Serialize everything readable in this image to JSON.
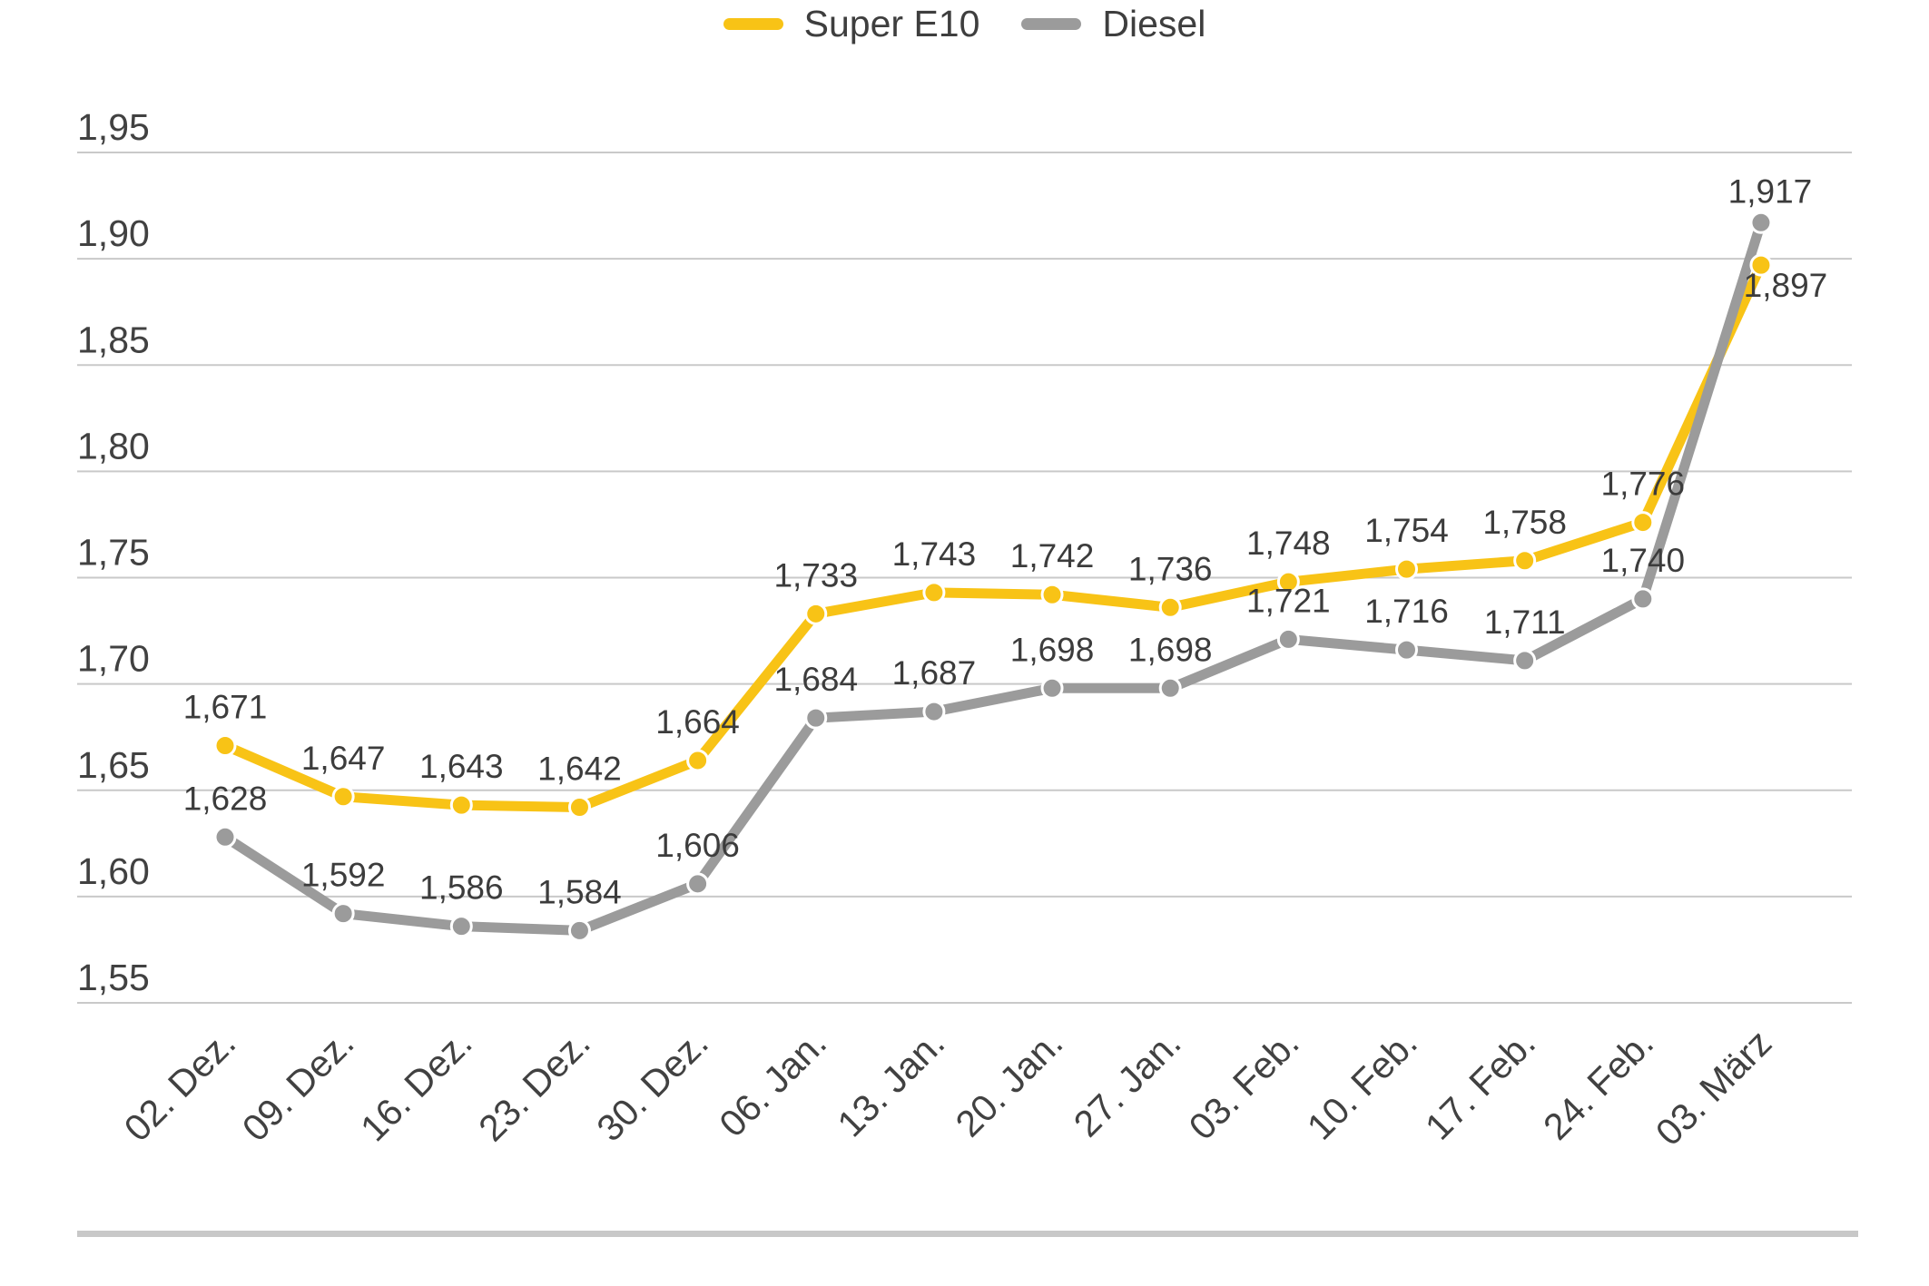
{
  "legend": {
    "items": [
      {
        "label": "Super E10",
        "color": "#F8C316"
      },
      {
        "label": "Diesel",
        "color": "#9B9B9B"
      }
    ]
  },
  "chart_data": {
    "type": "line",
    "title": "",
    "xlabel": "",
    "ylabel": "",
    "categories": [
      "02. Dez.",
      "09. Dez.",
      "16. Dez.",
      "23. Dez.",
      "30. Dez.",
      "06. Jan.",
      "13. Jan.",
      "20. Jan.",
      "27. Jan.",
      "03. Feb.",
      "10. Feb.",
      "17. Feb.",
      "24. Feb.",
      "03. März"
    ],
    "series": [
      {
        "name": "Super E10",
        "color": "#F8C316",
        "values": [
          1.671,
          1.647,
          1.643,
          1.642,
          1.664,
          1.733,
          1.743,
          1.742,
          1.736,
          1.748,
          1.754,
          1.758,
          1.776,
          1.897
        ],
        "labels": [
          "1,671",
          "1,647",
          "1,643",
          "1,642",
          "1,664",
          "1,733",
          "1,743",
          "1,742",
          "1,736",
          "1,748",
          "1,754",
          "1,758",
          "1,776",
          "1,897"
        ]
      },
      {
        "name": "Diesel",
        "color": "#9B9B9B",
        "values": [
          1.628,
          1.592,
          1.586,
          1.584,
          1.606,
          1.684,
          1.687,
          1.698,
          1.698,
          1.721,
          1.716,
          1.711,
          1.74,
          1.917
        ],
        "labels": [
          "1,628",
          "1,592",
          "1,586",
          "1,584",
          "1,606",
          "1,684",
          "1,687",
          "1,698",
          "1,698",
          "1,721",
          "1,716",
          "1,711",
          "1,740",
          "1,917"
        ]
      }
    ],
    "y_axis": {
      "range": [
        1.55,
        1.95
      ],
      "ticks": [
        {
          "label": "1,95",
          "value": 1.95
        },
        {
          "label": "1,90",
          "value": 1.9
        },
        {
          "label": "1,85",
          "value": 1.85
        },
        {
          "label": "1,80",
          "value": 1.8
        },
        {
          "label": "1,75",
          "value": 1.75
        },
        {
          "label": "1,70",
          "value": 1.7
        },
        {
          "label": "1,65",
          "value": 1.65
        },
        {
          "label": "1,60",
          "value": 1.6
        },
        {
          "label": "1,55",
          "value": 1.55
        }
      ]
    },
    "grid": "horizontal",
    "legend_position": "top-center",
    "decimal_style": "comma",
    "label_overrides": {
      "0": {
        "13": {
          "dx": 27,
          "dy": 65
        }
      },
      "1": {
        "13": {
          "dx": 10,
          "dy": 8
        }
      }
    },
    "colors": {
      "grid": "#C9C9C9",
      "axis_text": "#414141",
      "label_text": "#3C3C3C",
      "divider": "#C8C8C8",
      "background": "#FFFFFF"
    }
  }
}
